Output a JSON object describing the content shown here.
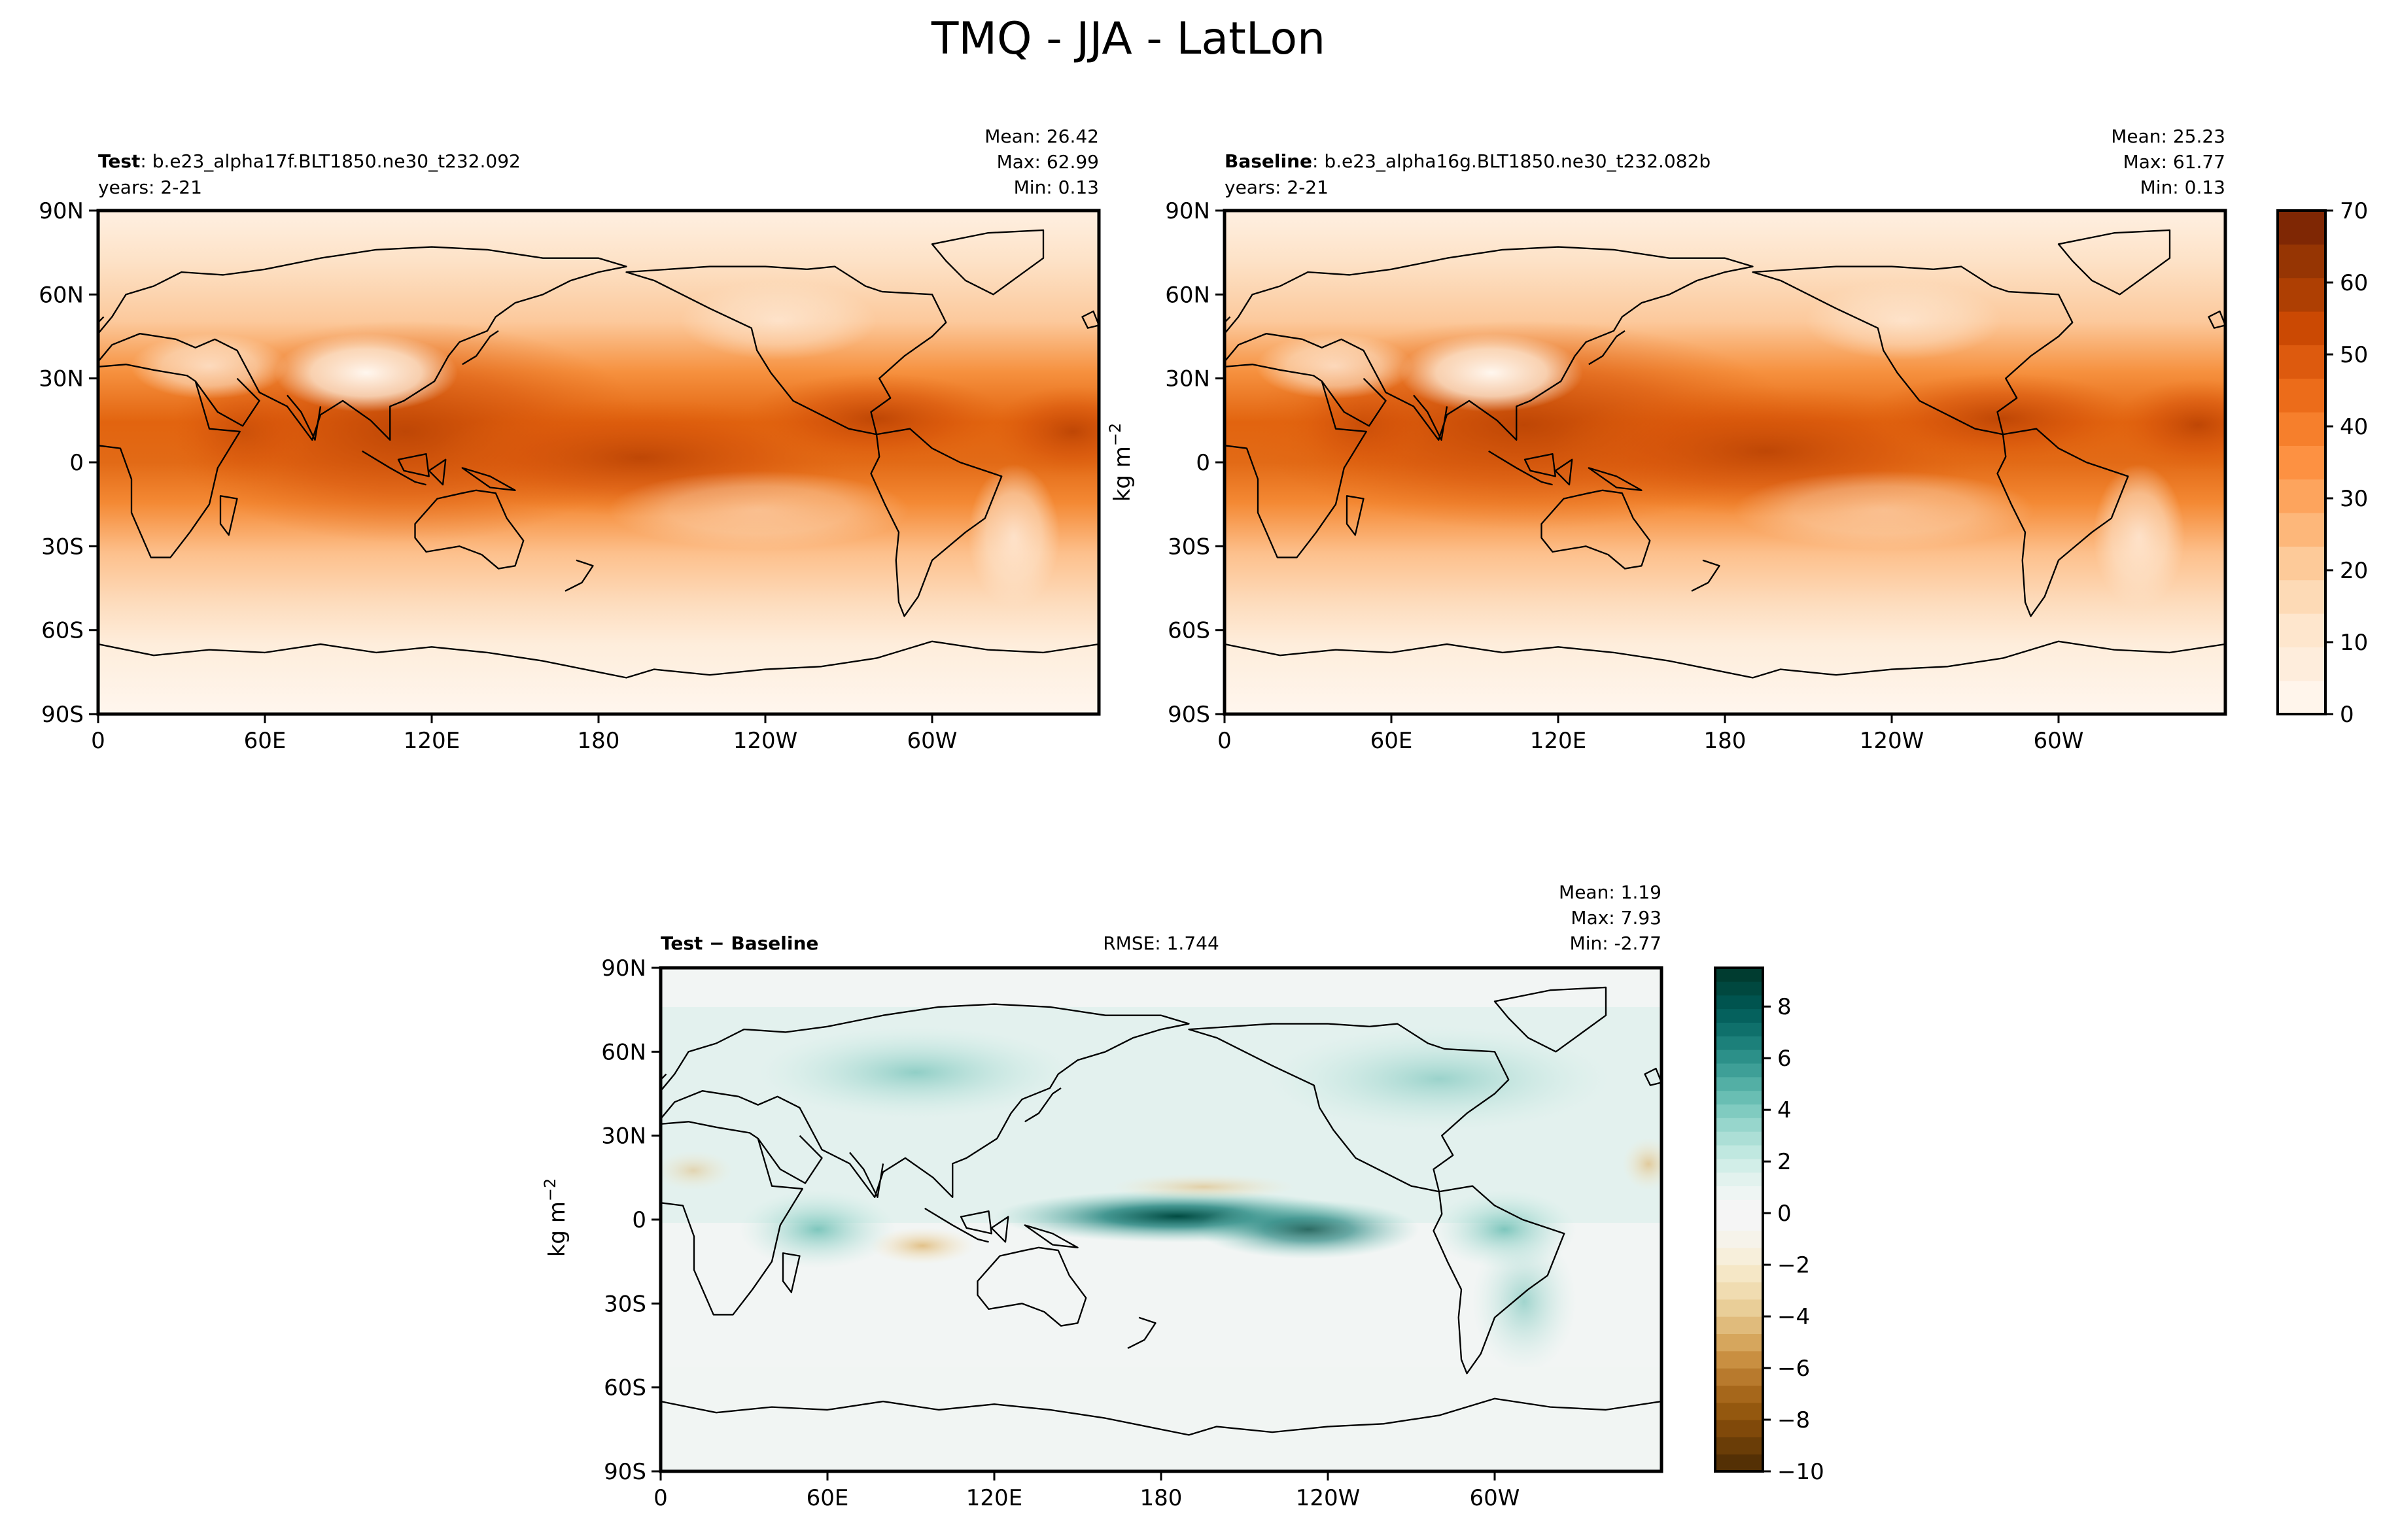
{
  "figure": {
    "title": "TMQ - JJA - LatLon",
    "units_label": "kg m",
    "units_exp": "−2"
  },
  "chart_data": [
    {
      "type": "heatmap",
      "panel": "test",
      "label_bold": "Test",
      "label_rest": ": b.e23_alpha17f.BLT1850.ne30_t232.092",
      "years": "years: 2-21",
      "stats": {
        "mean": "Mean: 26.42",
        "max": "Max: 62.99",
        "min": "Min:  0.13"
      },
      "lat_ticks": [
        "90N",
        "60N",
        "30N",
        "0",
        "30S",
        "60S",
        "90S"
      ],
      "lon_ticks": [
        "0",
        "60E",
        "120E",
        "180",
        "120W",
        "60W"
      ],
      "xlim": [
        0,
        360
      ],
      "ylim": [
        -90,
        90
      ],
      "colormap": "Oranges"
    },
    {
      "type": "heatmap",
      "panel": "baseline",
      "label_bold": "Baseline",
      "label_rest": ": b.e23_alpha16g.BLT1850.ne30_t232.082b",
      "years": "years: 2-21",
      "stats": {
        "mean": "Mean: 25.23",
        "max": "Max: 61.77",
        "min": "Min:  0.13"
      },
      "lat_ticks": [
        "90N",
        "60N",
        "30N",
        "0",
        "30S",
        "60S",
        "90S"
      ],
      "lon_ticks": [
        "0",
        "60E",
        "120E",
        "180",
        "120W",
        "60W"
      ],
      "xlim": [
        0,
        360
      ],
      "ylim": [
        -90,
        90
      ],
      "colormap": "Oranges",
      "colorbar": {
        "ticks": [
          "0",
          "10",
          "20",
          "30",
          "40",
          "50",
          "60",
          "70"
        ],
        "range": [
          0,
          70
        ],
        "levels": 15,
        "colors": [
          "#fff5eb",
          "#feeddc",
          "#fee6cd",
          "#fddab6",
          "#fdca99",
          "#fdb77a",
          "#fda45d",
          "#fd9142",
          "#f67f2c",
          "#ec6c1a",
          "#dd5a0e",
          "#cb4903",
          "#ae3f03",
          "#963503",
          "#7f2704"
        ]
      }
    },
    {
      "type": "heatmap",
      "panel": "difference",
      "label_bold": "Test − Baseline",
      "rmse": "RMSE: 1.744",
      "stats": {
        "mean": "Mean:  1.19",
        "max": "Max:  7.93",
        "min": "Min: -2.77"
      },
      "lat_ticks": [
        "90N",
        "60N",
        "30N",
        "0",
        "30S",
        "60S",
        "90S"
      ],
      "lon_ticks": [
        "0",
        "60E",
        "120E",
        "180",
        "120W",
        "60W"
      ],
      "xlim": [
        0,
        360
      ],
      "ylim": [
        -90,
        90
      ],
      "colormap": "BrBG",
      "colorbar": {
        "ticks": [
          "8",
          "6",
          "4",
          "2",
          "0",
          "−2",
          "−4",
          "−6",
          "−8",
          "−10"
        ],
        "range": [
          -10,
          9.5
        ],
        "levels": 39,
        "colors_low": [
          "#543005",
          "#6a3d07",
          "#80490a",
          "#94580f",
          "#a6671b",
          "#b87a2d",
          "#c98f41",
          "#d6a65d",
          "#e0bb7c",
          "#e9ce98",
          "#f0dcb1",
          "#f5e7c6",
          "#f7efdb",
          "#f6f3ea",
          "#f5f5f5"
        ],
        "colors_high": [
          "#f5f5f5",
          "#eef5f3",
          "#e2f2ee",
          "#d2eee8",
          "#c0e8e0",
          "#acdfd6",
          "#97d6cc",
          "#80cbc0",
          "#69beb3",
          "#53afa5",
          "#3e9f97",
          "#2c9089",
          "#1c807a",
          "#0f706b",
          "#05615d",
          "#00544f",
          "#00483f",
          "#003c30"
        ]
      }
    }
  ]
}
